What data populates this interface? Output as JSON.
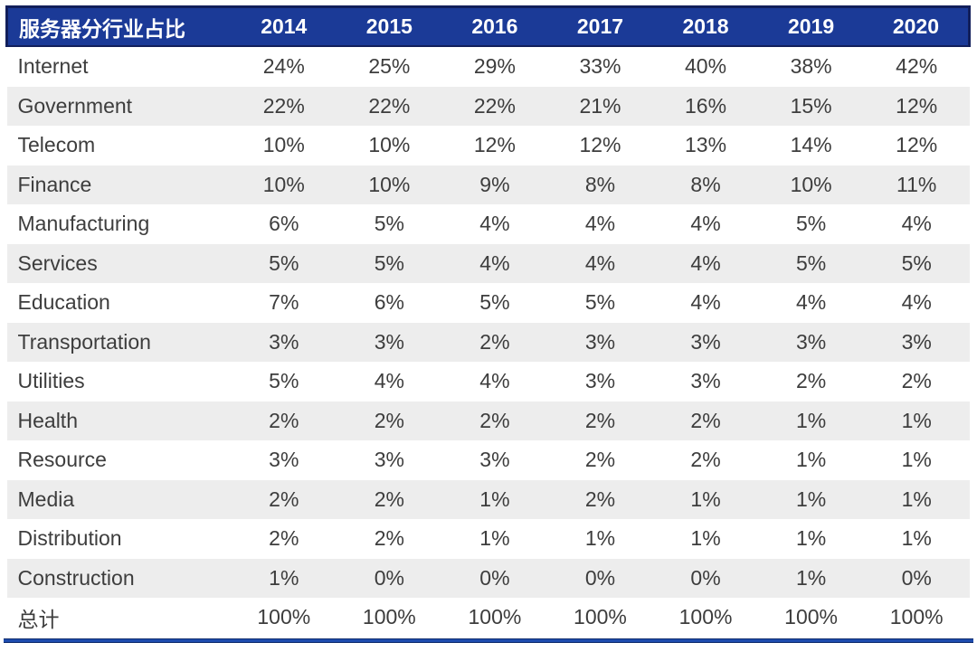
{
  "colors": {
    "header_bg": "#1b3a97",
    "header_border": "#121f5b",
    "header_text": "#ffffff",
    "body_text": "#3d3d3d",
    "stripe_bg": "#ededed",
    "accent_line": "#1d4cae",
    "accent_edge": "#0e2a6b"
  },
  "chart_data": {
    "type": "table",
    "title": "服务器分行业占比",
    "categories": [
      "2014",
      "2015",
      "2016",
      "2017",
      "2018",
      "2019",
      "2020"
    ],
    "rows": [
      {
        "label": "Internet",
        "values": [
          "24%",
          "25%",
          "29%",
          "33%",
          "40%",
          "38%",
          "42%"
        ]
      },
      {
        "label": "Government",
        "values": [
          "22%",
          "22%",
          "22%",
          "21%",
          "16%",
          "15%",
          "12%"
        ]
      },
      {
        "label": "Telecom",
        "values": [
          "10%",
          "10%",
          "12%",
          "12%",
          "13%",
          "14%",
          "12%"
        ]
      },
      {
        "label": "Finance",
        "values": [
          "10%",
          "10%",
          "9%",
          "8%",
          "8%",
          "10%",
          "11%"
        ]
      },
      {
        "label": "Manufacturing",
        "values": [
          "6%",
          "5%",
          "4%",
          "4%",
          "4%",
          "5%",
          "4%"
        ]
      },
      {
        "label": "Services",
        "values": [
          "5%",
          "5%",
          "4%",
          "4%",
          "4%",
          "5%",
          "5%"
        ]
      },
      {
        "label": "Education",
        "values": [
          "7%",
          "6%",
          "5%",
          "5%",
          "4%",
          "4%",
          "4%"
        ]
      },
      {
        "label": "Transportation",
        "values": [
          "3%",
          "3%",
          "2%",
          "3%",
          "3%",
          "3%",
          "3%"
        ]
      },
      {
        "label": "Utilities",
        "values": [
          "5%",
          "4%",
          "4%",
          "3%",
          "3%",
          "2%",
          "2%"
        ]
      },
      {
        "label": "Health",
        "values": [
          "2%",
          "2%",
          "2%",
          "2%",
          "2%",
          "1%",
          "1%"
        ]
      },
      {
        "label": "Resource",
        "values": [
          "3%",
          "3%",
          "3%",
          "2%",
          "2%",
          "1%",
          "1%"
        ]
      },
      {
        "label": "Media",
        "values": [
          "2%",
          "2%",
          "1%",
          "2%",
          "1%",
          "1%",
          "1%"
        ]
      },
      {
        "label": "Distribution",
        "values": [
          "2%",
          "2%",
          "1%",
          "1%",
          "1%",
          "1%",
          "1%"
        ]
      },
      {
        "label": "Construction",
        "values": [
          "1%",
          "0%",
          "0%",
          "0%",
          "0%",
          "1%",
          "0%"
        ]
      },
      {
        "label": "总计",
        "values": [
          "100%",
          "100%",
          "100%",
          "100%",
          "100%",
          "100%",
          "100%"
        ]
      }
    ]
  }
}
